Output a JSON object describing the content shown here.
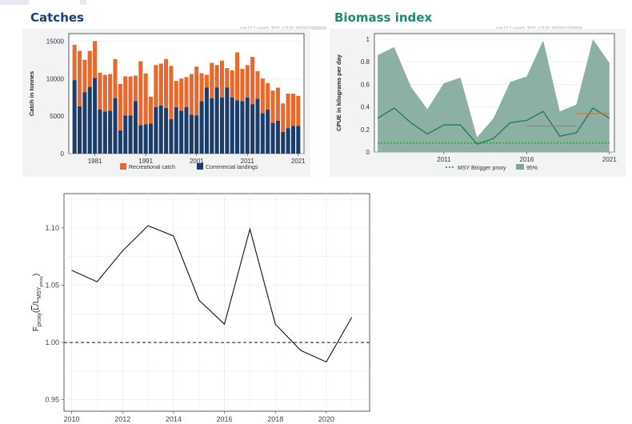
{
  "catches": {
    "heading": "Catches",
    "figure_id": "cod.27.2.coastS_2022_17129_20226101200016"
  },
  "biomass": {
    "heading": "Biomass index",
    "figure_id": "cod.27.2.coastS_2022_17129_20226101200016"
  },
  "colors": {
    "recreational": "#e8692d",
    "commercial": "#1c3c6b",
    "biomass_fill": "#7fa79a",
    "biomass_line": "#1b7a5a",
    "msy_line": "#3cae3c",
    "ref_segment": "#e8692d",
    "catches_title": "#1b3f7a",
    "biomass_title": "#1f8a70"
  },
  "chart_data": [
    {
      "id": "catches",
      "type": "bar",
      "stacked": true,
      "title": "Catches",
      "xlabel": "",
      "ylabel": "Catch in tonnes",
      "ylim": [
        0,
        16000
      ],
      "yticks": [
        0,
        5000,
        10000,
        15000
      ],
      "xticks": [
        1981,
        1991,
        2001,
        2011,
        2021
      ],
      "categories": [
        1977,
        1978,
        1979,
        1980,
        1981,
        1982,
        1983,
        1984,
        1985,
        1986,
        1987,
        1988,
        1989,
        1990,
        1991,
        1992,
        1993,
        1994,
        1995,
        1996,
        1997,
        1998,
        1999,
        2000,
        2001,
        2002,
        2003,
        2004,
        2005,
        2006,
        2007,
        2008,
        2009,
        2010,
        2011,
        2012,
        2013,
        2014,
        2015,
        2016,
        2017,
        2018,
        2019,
        2020,
        2021
      ],
      "series": [
        {
          "name": "Commercial landings",
          "values": [
            9800,
            6300,
            8200,
            8900,
            10100,
            5900,
            5600,
            5700,
            7400,
            3100,
            5100,
            5100,
            7000,
            3800,
            3900,
            4000,
            6200,
            6400,
            6100,
            4600,
            6200,
            5700,
            6200,
            5200,
            5100,
            7000,
            8800,
            7400,
            8800,
            7500,
            8800,
            7500,
            7100,
            7000,
            7500,
            6600,
            7300,
            5400,
            5900,
            4100,
            4400,
            2900,
            3400,
            3700,
            3700
          ]
        },
        {
          "name": "Recreational catch",
          "values": [
            4700,
            7400,
            4300,
            4800,
            4900,
            4900,
            4900,
            4900,
            5200,
            6200,
            5200,
            5200,
            3400,
            8500,
            6800,
            3600,
            5600,
            5600,
            6500,
            7100,
            3500,
            4300,
            4000,
            5400,
            6500,
            3700,
            1700,
            4700,
            3000,
            4900,
            2600,
            3600,
            6400,
            4300,
            4300,
            6300,
            3700,
            4600,
            3500,
            4300,
            4400,
            3800,
            4600,
            4300,
            4000
          ]
        }
      ],
      "legend": [
        "Recreational catch",
        "Commercial landings"
      ],
      "legend_position": "bottom"
    },
    {
      "id": "biomass",
      "type": "area",
      "title": "Biomass index",
      "xlabel": "",
      "ylabel": "CPUE in kilograms per day",
      "ylim": [
        0,
        1.05
      ],
      "yticks": [
        0,
        0.2,
        0.4,
        0.6,
        0.8,
        1
      ],
      "xticks": [
        2011,
        2016,
        2021
      ],
      "x": [
        2007,
        2008,
        2009,
        2010,
        2011,
        2012,
        2013,
        2014,
        2015,
        2016,
        2017,
        2018,
        2019,
        2020,
        2021
      ],
      "index": [
        0.3,
        0.39,
        0.26,
        0.16,
        0.24,
        0.24,
        0.07,
        0.12,
        0.26,
        0.28,
        0.36,
        0.14,
        0.17,
        0.39,
        0.3
      ],
      "upper95": [
        0.86,
        0.93,
        0.58,
        0.38,
        0.61,
        0.66,
        0.13,
        0.3,
        0.62,
        0.67,
        0.99,
        0.36,
        0.42,
        1.0,
        0.79
      ],
      "lower95": [
        0,
        0,
        0,
        0,
        0,
        0,
        0,
        0,
        0,
        0,
        0,
        0,
        0,
        0,
        0
      ],
      "msy_btrigger_proxy": 0.08,
      "reference_segments": [
        {
          "x": [
            2016,
            2019
          ],
          "y": 0.23
        },
        {
          "x": [
            2019,
            2021
          ],
          "y": 0.34
        }
      ],
      "legend": [
        "MSY Btrigger proxy",
        "95%"
      ],
      "legend_position": "bottom"
    },
    {
      "id": "fproxy",
      "type": "line",
      "title": "",
      "xlabel": "",
      "ylabel": "F_proxy (L̄ / L_MSYproxy)",
      "ylabel_parts": {
        "F": "F",
        "proxy": "proxy",
        "open": "(",
        "L": "L",
        "slash": "/",
        "L2": "L",
        "msy": "MSY",
        "sub2": "proxy",
        "close": ")"
      },
      "ylim": [
        0.94,
        1.13
      ],
      "yticks": [
        0.95,
        1.0,
        1.05,
        1.1
      ],
      "ytick_labels": [
        "0.95",
        "1.00",
        "1.05",
        "1.10"
      ],
      "xlim": [
        2009.7,
        2021.7
      ],
      "xticks": [
        2010,
        2012,
        2014,
        2016,
        2018,
        2020
      ],
      "x": [
        2010,
        2011,
        2012,
        2013,
        2014,
        2015,
        2016,
        2017,
        2018,
        2019,
        2020,
        2021
      ],
      "y": [
        1.063,
        1.053,
        1.08,
        1.102,
        1.093,
        1.037,
        1.016,
        1.099,
        1.016,
        0.993,
        0.983,
        1.022
      ],
      "reference_line": 1.0
    }
  ]
}
